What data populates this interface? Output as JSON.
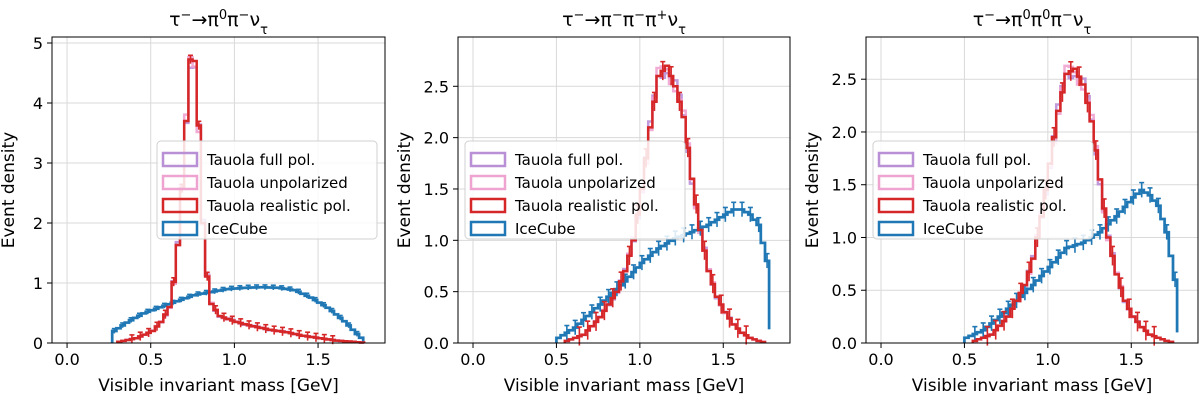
{
  "colors": {
    "full_pol": "#b98fd6",
    "unpolarized": "#eea3d0",
    "realistic": "#d62728",
    "icecube": "#1f77b4",
    "icecube_light": "#9ec6e3",
    "realistic_light": "#ee9b9c",
    "grid": "#d9d9d9"
  },
  "chart_data": [
    {
      "type": "histogram",
      "title": "τ⁻→π⁰π⁻ν_τ",
      "title_parts": {
        "base": "τ",
        "sup1": "−",
        "arrow": "→π",
        "sup2": "0",
        "mid": "π",
        "sup3": "−",
        "nu": "ν",
        "sub": "τ"
      },
      "xlabel": "Visible invariant mass [GeV]",
      "ylabel": "Event density",
      "xlim": [
        -0.09,
        1.9
      ],
      "ylim": [
        0,
        5.1
      ],
      "xticks": [
        0.0,
        0.5,
        1.0,
        1.5
      ],
      "yticks": [
        0,
        1,
        2,
        3,
        4,
        5
      ],
      "legend": {
        "position": "center-right",
        "entries": [
          "Tauola full pol.",
          "Tauola unpolarized",
          "Tauola realistic pol.",
          "IceCube"
        ]
      },
      "series": [
        {
          "name": "Tauola realistic pol.",
          "x": [
            0.3,
            0.4,
            0.5,
            0.55,
            0.6,
            0.63,
            0.66,
            0.68,
            0.7,
            0.72,
            0.74,
            0.76,
            0.78,
            0.8,
            0.82,
            0.85,
            0.9,
            1.0,
            1.1,
            1.2,
            1.3,
            1.4,
            1.5,
            1.6,
            1.7,
            1.78
          ],
          "y": [
            0.02,
            0.08,
            0.2,
            0.35,
            0.6,
            1.1,
            1.9,
            2.8,
            3.7,
            4.7,
            4.8,
            4.6,
            3.3,
            2.0,
            1.2,
            0.65,
            0.45,
            0.35,
            0.28,
            0.22,
            0.18,
            0.12,
            0.08,
            0.04,
            0.02,
            0.0
          ]
        },
        {
          "name": "IceCube",
          "x": [
            0.27,
            0.35,
            0.45,
            0.55,
            0.65,
            0.75,
            0.85,
            0.95,
            1.05,
            1.15,
            1.25,
            1.35,
            1.45,
            1.55,
            1.65,
            1.72,
            1.78
          ],
          "y": [
            0.2,
            0.35,
            0.5,
            0.6,
            0.7,
            0.8,
            0.85,
            0.9,
            0.92,
            0.93,
            0.92,
            0.88,
            0.75,
            0.58,
            0.35,
            0.15,
            0.0
          ]
        }
      ]
    },
    {
      "type": "histogram",
      "title": "τ⁻→π⁻π⁻π⁺ν_τ",
      "xlabel": "Visible invariant mass [GeV]",
      "ylabel": "Event density",
      "xlim": [
        -0.09,
        1.9
      ],
      "ylim": [
        0,
        2.98
      ],
      "xticks": [
        0.0,
        0.5,
        1.0,
        1.5
      ],
      "yticks": [
        0.0,
        0.5,
        1.0,
        1.5,
        2.0,
        2.5
      ],
      "legend": {
        "position": "center-left",
        "entries": [
          "Tauola full pol.",
          "Tauola unpolarized",
          "Tauola realistic pol.",
          "IceCube"
        ]
      },
      "series": [
        {
          "name": "Tauola realistic pol.",
          "x": [
            0.55,
            0.65,
            0.75,
            0.85,
            0.9,
            0.95,
            1.0,
            1.05,
            1.1,
            1.15,
            1.2,
            1.25,
            1.3,
            1.35,
            1.4,
            1.45,
            1.5,
            1.55,
            1.6,
            1.65,
            1.7,
            1.75
          ],
          "y": [
            0.02,
            0.08,
            0.25,
            0.5,
            0.7,
            1.0,
            1.5,
            2.1,
            2.6,
            2.7,
            2.5,
            2.2,
            1.6,
            1.1,
            0.7,
            0.45,
            0.3,
            0.18,
            0.1,
            0.05,
            0.02,
            0.0
          ]
        },
        {
          "name": "IceCube",
          "x": [
            0.5,
            0.6,
            0.7,
            0.8,
            0.9,
            1.0,
            1.1,
            1.2,
            1.3,
            1.4,
            1.5,
            1.55,
            1.6,
            1.65,
            1.7,
            1.75,
            1.78
          ],
          "y": [
            0.05,
            0.15,
            0.3,
            0.45,
            0.6,
            0.78,
            0.92,
            1.02,
            1.08,
            1.15,
            1.25,
            1.3,
            1.3,
            1.25,
            1.15,
            0.8,
            0.0
          ]
        }
      ]
    },
    {
      "type": "histogram",
      "title": "τ⁻→π⁰π⁰π⁻ν_τ",
      "xlabel": "Visible invariant mass [GeV]",
      "ylabel": "Event density",
      "xlim": [
        -0.09,
        1.9
      ],
      "ylim": [
        0,
        2.9
      ],
      "xticks": [
        0.0,
        0.5,
        1.0,
        1.5
      ],
      "yticks": [
        0.0,
        0.5,
        1.0,
        1.5,
        2.0,
        2.5
      ],
      "legend": {
        "position": "center-left",
        "entries": [
          "Tauola full pol.",
          "Tauola unpolarized",
          "Tauola realistic pol.",
          "IceCube"
        ]
      },
      "series": [
        {
          "name": "Tauola realistic pol.",
          "x": [
            0.55,
            0.65,
            0.75,
            0.85,
            0.9,
            0.95,
            1.0,
            1.05,
            1.1,
            1.15,
            1.2,
            1.25,
            1.3,
            1.35,
            1.4,
            1.45,
            1.5,
            1.55,
            1.6,
            1.65,
            1.7,
            1.75
          ],
          "y": [
            0.02,
            0.08,
            0.25,
            0.55,
            0.8,
            1.2,
            1.7,
            2.2,
            2.55,
            2.6,
            2.45,
            2.1,
            1.55,
            1.0,
            0.65,
            0.4,
            0.25,
            0.15,
            0.08,
            0.05,
            0.02,
            0.0
          ]
        },
        {
          "name": "IceCube",
          "x": [
            0.5,
            0.6,
            0.7,
            0.8,
            0.9,
            1.0,
            1.1,
            1.2,
            1.3,
            1.4,
            1.5,
            1.55,
            1.6,
            1.65,
            1.7,
            1.75,
            1.78
          ],
          "y": [
            0.05,
            0.12,
            0.25,
            0.4,
            0.55,
            0.72,
            0.9,
            0.95,
            1.05,
            1.2,
            1.38,
            1.45,
            1.4,
            1.3,
            1.05,
            0.6,
            0.0
          ]
        }
      ]
    }
  ]
}
